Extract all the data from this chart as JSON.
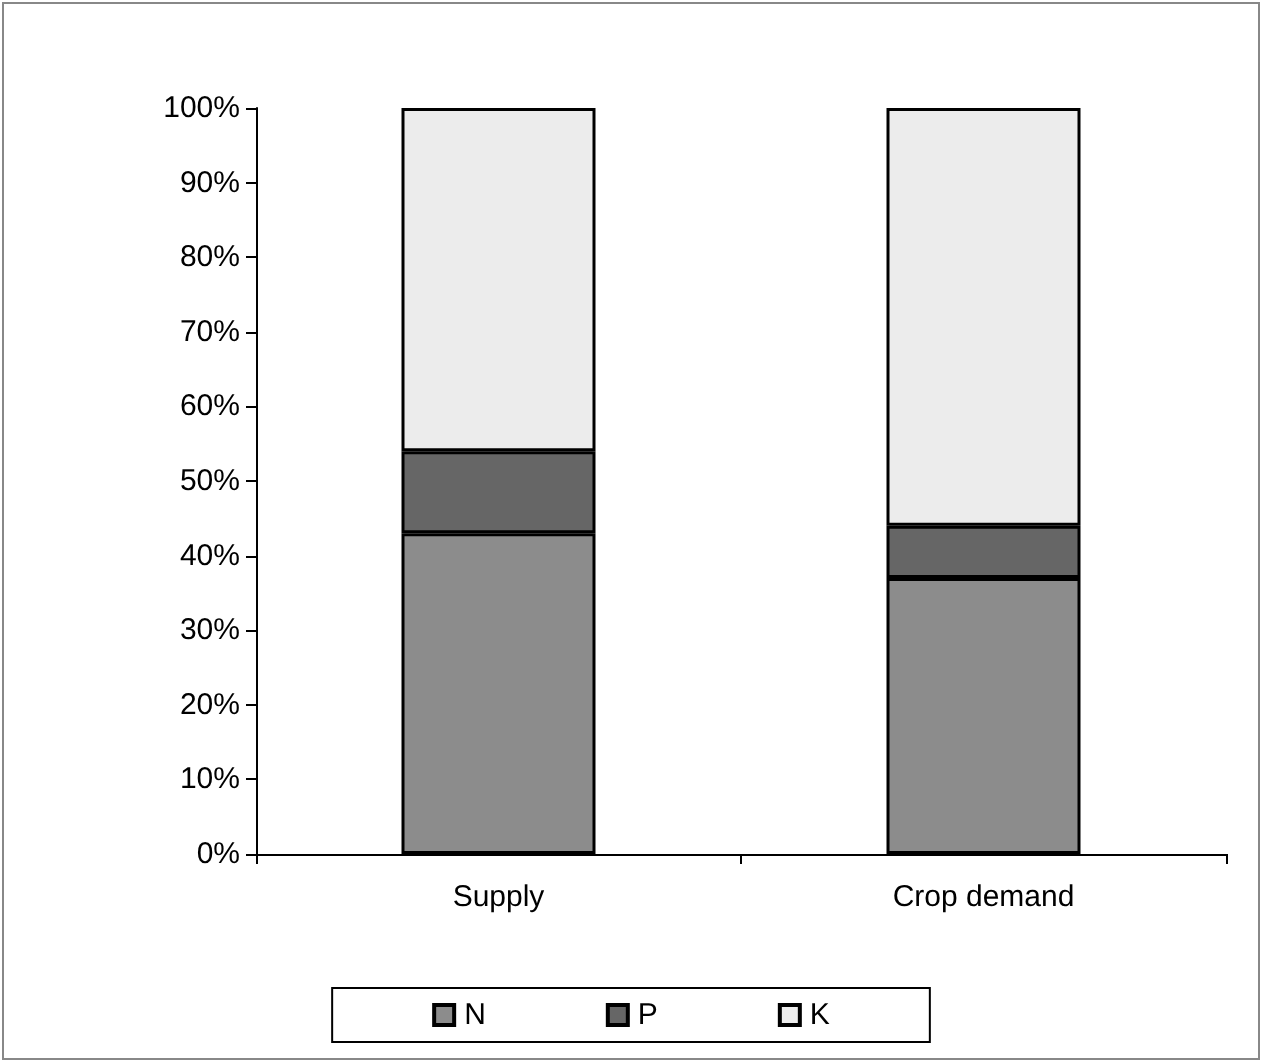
{
  "chart_data": {
    "type": "bar",
    "stacked": true,
    "categories": [
      "Supply",
      "Crop demand"
    ],
    "series": [
      {
        "name": "N",
        "color": "#8c8c8c",
        "values": [
          43,
          37
        ]
      },
      {
        "name": "P",
        "color": "#666666",
        "values": [
          11,
          7
        ]
      },
      {
        "name": "K",
        "color": "#ececec",
        "values": [
          46,
          56
        ]
      }
    ],
    "ylim": [
      0,
      100
    ],
    "yticks": [
      {
        "value": 0,
        "label": "0%"
      },
      {
        "value": 10,
        "label": "10%"
      },
      {
        "value": 20,
        "label": "20%"
      },
      {
        "value": 30,
        "label": "30%"
      },
      {
        "value": 40,
        "label": "40%"
      },
      {
        "value": 50,
        "label": "50%"
      },
      {
        "value": 60,
        "label": "60%"
      },
      {
        "value": 70,
        "label": "70%"
      },
      {
        "value": 80,
        "label": "80%"
      },
      {
        "value": 90,
        "label": "90%"
      },
      {
        "value": 100,
        "label": "100%"
      }
    ],
    "grid": false,
    "legend": "bottom"
  }
}
